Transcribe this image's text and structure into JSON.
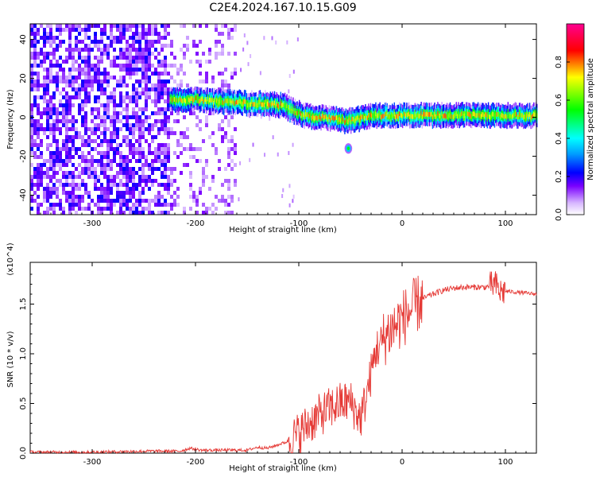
{
  "figure_title": "C2E4.2024.167.10.15.G09",
  "colors": {
    "snr_line": "#e53935",
    "colormap": [
      "#ffffff",
      "#c8a0ff",
      "#7a00ff",
      "#0000ff",
      "#00e5ff",
      "#00ff00",
      "#ffff00",
      "#ff0000",
      "#ff0099"
    ]
  },
  "chart_data": [
    {
      "type": "heatmap",
      "title": "",
      "xlabel": "Height of straight line (km)",
      "ylabel": "Frequency (Hz)",
      "xlim": [
        -360,
        130
      ],
      "ylim": [
        -50,
        48
      ],
      "xticks": [
        -300,
        -200,
        -100,
        0,
        100
      ],
      "yticks": [
        -40,
        -20,
        0,
        20,
        40
      ],
      "colorbar": {
        "label": "Normalized spectral amplitude",
        "range": [
          0.0,
          1.0
        ],
        "ticks": [
          "0.0",
          "0.2",
          "0.4",
          "0.6",
          "0.8"
        ]
      },
      "signal_trace": {
        "x": [
          -225,
          -200,
          -180,
          -165,
          -150,
          -130,
          -115,
          -105,
          -95,
          -85,
          -75,
          -65,
          -55,
          -45,
          -35,
          -25,
          -15,
          -5,
          5,
          20,
          40,
          60,
          80,
          100,
          120,
          130
        ],
        "y": [
          9,
          9,
          8,
          8,
          7,
          7,
          6,
          3,
          1,
          0,
          0,
          -1,
          -2,
          -1,
          0,
          1,
          1,
          1,
          1,
          1,
          1,
          1,
          1,
          1,
          1,
          1
        ]
      },
      "noise_region_km": [
        -360,
        -160
      ]
    },
    {
      "type": "line",
      "title": "",
      "xlabel": "Height of straight line (km)",
      "ylabel": "SNR (10 * v/v)",
      "y_multiplier": "(x10^4)",
      "xlim": [
        -360,
        130
      ],
      "ylim": [
        0,
        1.92
      ],
      "xticks": [
        -300,
        -200,
        -100,
        0,
        100
      ],
      "yticks": [
        "0.0",
        "0.5",
        "1.0",
        "1.5"
      ],
      "series": [
        {
          "x": [
            -360,
            -300,
            -250,
            -215,
            -205,
            -195,
            -150,
            -140,
            -130,
            -110,
            -100,
            -90,
            -80,
            -70,
            -60,
            -50,
            -45,
            -40,
            -35,
            -30,
            -25,
            -20,
            -15,
            -10,
            -5,
            0,
            5,
            10,
            15,
            20,
            25,
            30,
            40,
            50,
            60,
            70,
            80,
            85,
            90,
            93,
            95,
            100,
            110,
            120,
            130
          ],
          "y": [
            0.01,
            0.01,
            0.02,
            0.02,
            0.05,
            0.03,
            0.03,
            0.06,
            0.05,
            0.12,
            0.2,
            0.3,
            0.38,
            0.45,
            0.5,
            0.52,
            0.42,
            0.35,
            0.55,
            0.8,
            1.05,
            1.1,
            1.2,
            1.25,
            1.3,
            1.35,
            1.4,
            1.45,
            1.5,
            1.55,
            1.58,
            1.6,
            1.64,
            1.66,
            1.67,
            1.67,
            1.67,
            1.68,
            1.7,
            1.65,
            1.62,
            1.63,
            1.62,
            1.61,
            1.6
          ]
        }
      ]
    }
  ]
}
